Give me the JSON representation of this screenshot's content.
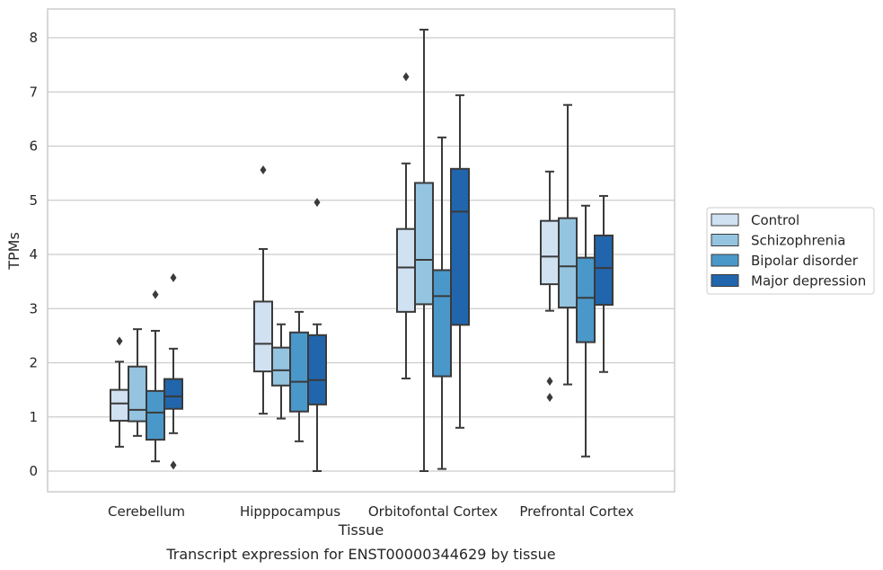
{
  "caption": "Transcript expression for ENST00000344629 by tissue",
  "chart_data": {
    "type": "box",
    "xlabel": "Tissue",
    "ylabel": "TPMs",
    "ylim": [
      -0.4,
      8.55
    ],
    "yticks": [
      0,
      1,
      2,
      3,
      4,
      5,
      6,
      7,
      8
    ],
    "grid": "horizontal",
    "legend_position": "right",
    "categories": [
      "Cerebellum",
      "Hipppocampus",
      "Orbitofontal Cortex",
      "Prefrontal Cortex"
    ],
    "series": [
      {
        "name": "Control",
        "color": "#d0e1f2",
        "boxes": [
          {
            "whisker_low": 0.45,
            "q1": 0.93,
            "median": 1.25,
            "q3": 1.5,
            "whisker_high": 2.02,
            "outliers": [
              2.4
            ]
          },
          {
            "whisker_low": 1.06,
            "q1": 1.84,
            "median": 2.35,
            "q3": 3.13,
            "whisker_high": 4.1,
            "outliers": [
              5.56
            ]
          },
          {
            "whisker_low": 1.71,
            "q1": 2.94,
            "median": 3.76,
            "q3": 4.47,
            "whisker_high": 5.68,
            "outliers": [
              7.28
            ]
          },
          {
            "whisker_low": 2.96,
            "q1": 3.45,
            "median": 3.96,
            "q3": 4.62,
            "whisker_high": 5.53,
            "outliers": [
              1.66,
              1.36
            ]
          }
        ]
      },
      {
        "name": "Schizophrenia",
        "color": "#94c4df",
        "boxes": [
          {
            "whisker_low": 0.65,
            "q1": 0.92,
            "median": 1.13,
            "q3": 1.93,
            "whisker_high": 2.62,
            "outliers": []
          },
          {
            "whisker_low": 0.97,
            "q1": 1.58,
            "median": 1.86,
            "q3": 2.28,
            "whisker_high": 2.71,
            "outliers": []
          },
          {
            "whisker_low": 0.0,
            "q1": 3.08,
            "median": 3.9,
            "q3": 5.32,
            "whisker_high": 8.15,
            "outliers": []
          },
          {
            "whisker_low": 1.6,
            "q1": 3.02,
            "median": 3.78,
            "q3": 4.67,
            "whisker_high": 6.76,
            "outliers": []
          }
        ]
      },
      {
        "name": "Bipolar disorder",
        "color": "#4a98c9",
        "boxes": [
          {
            "whisker_low": 0.18,
            "q1": 0.58,
            "median": 1.08,
            "q3": 1.48,
            "whisker_high": 2.59,
            "outliers": [
              3.26
            ]
          },
          {
            "whisker_low": 0.55,
            "q1": 1.1,
            "median": 1.65,
            "q3": 2.56,
            "whisker_high": 2.94,
            "outliers": []
          },
          {
            "whisker_low": 0.04,
            "q1": 1.75,
            "median": 3.23,
            "q3": 3.71,
            "whisker_high": 6.16,
            "outliers": []
          },
          {
            "whisker_low": 0.27,
            "q1": 2.38,
            "median": 3.2,
            "q3": 3.94,
            "whisker_high": 4.9,
            "outliers": []
          }
        ]
      },
      {
        "name": "Major depression",
        "color": "#2166ac",
        "boxes": [
          {
            "whisker_low": 0.7,
            "q1": 1.15,
            "median": 1.38,
            "q3": 1.7,
            "whisker_high": 2.26,
            "outliers": [
              3.57,
              0.11
            ]
          },
          {
            "whisker_low": 0.0,
            "q1": 1.23,
            "median": 1.68,
            "q3": 2.51,
            "whisker_high": 2.71,
            "outliers": [
              4.96
            ]
          },
          {
            "whisker_low": 0.8,
            "q1": 2.7,
            "median": 4.79,
            "q3": 5.58,
            "whisker_high": 6.94,
            "outliers": []
          },
          {
            "whisker_low": 1.83,
            "q1": 3.07,
            "median": 3.75,
            "q3": 4.35,
            "whisker_high": 5.08,
            "outliers": []
          }
        ]
      }
    ]
  }
}
